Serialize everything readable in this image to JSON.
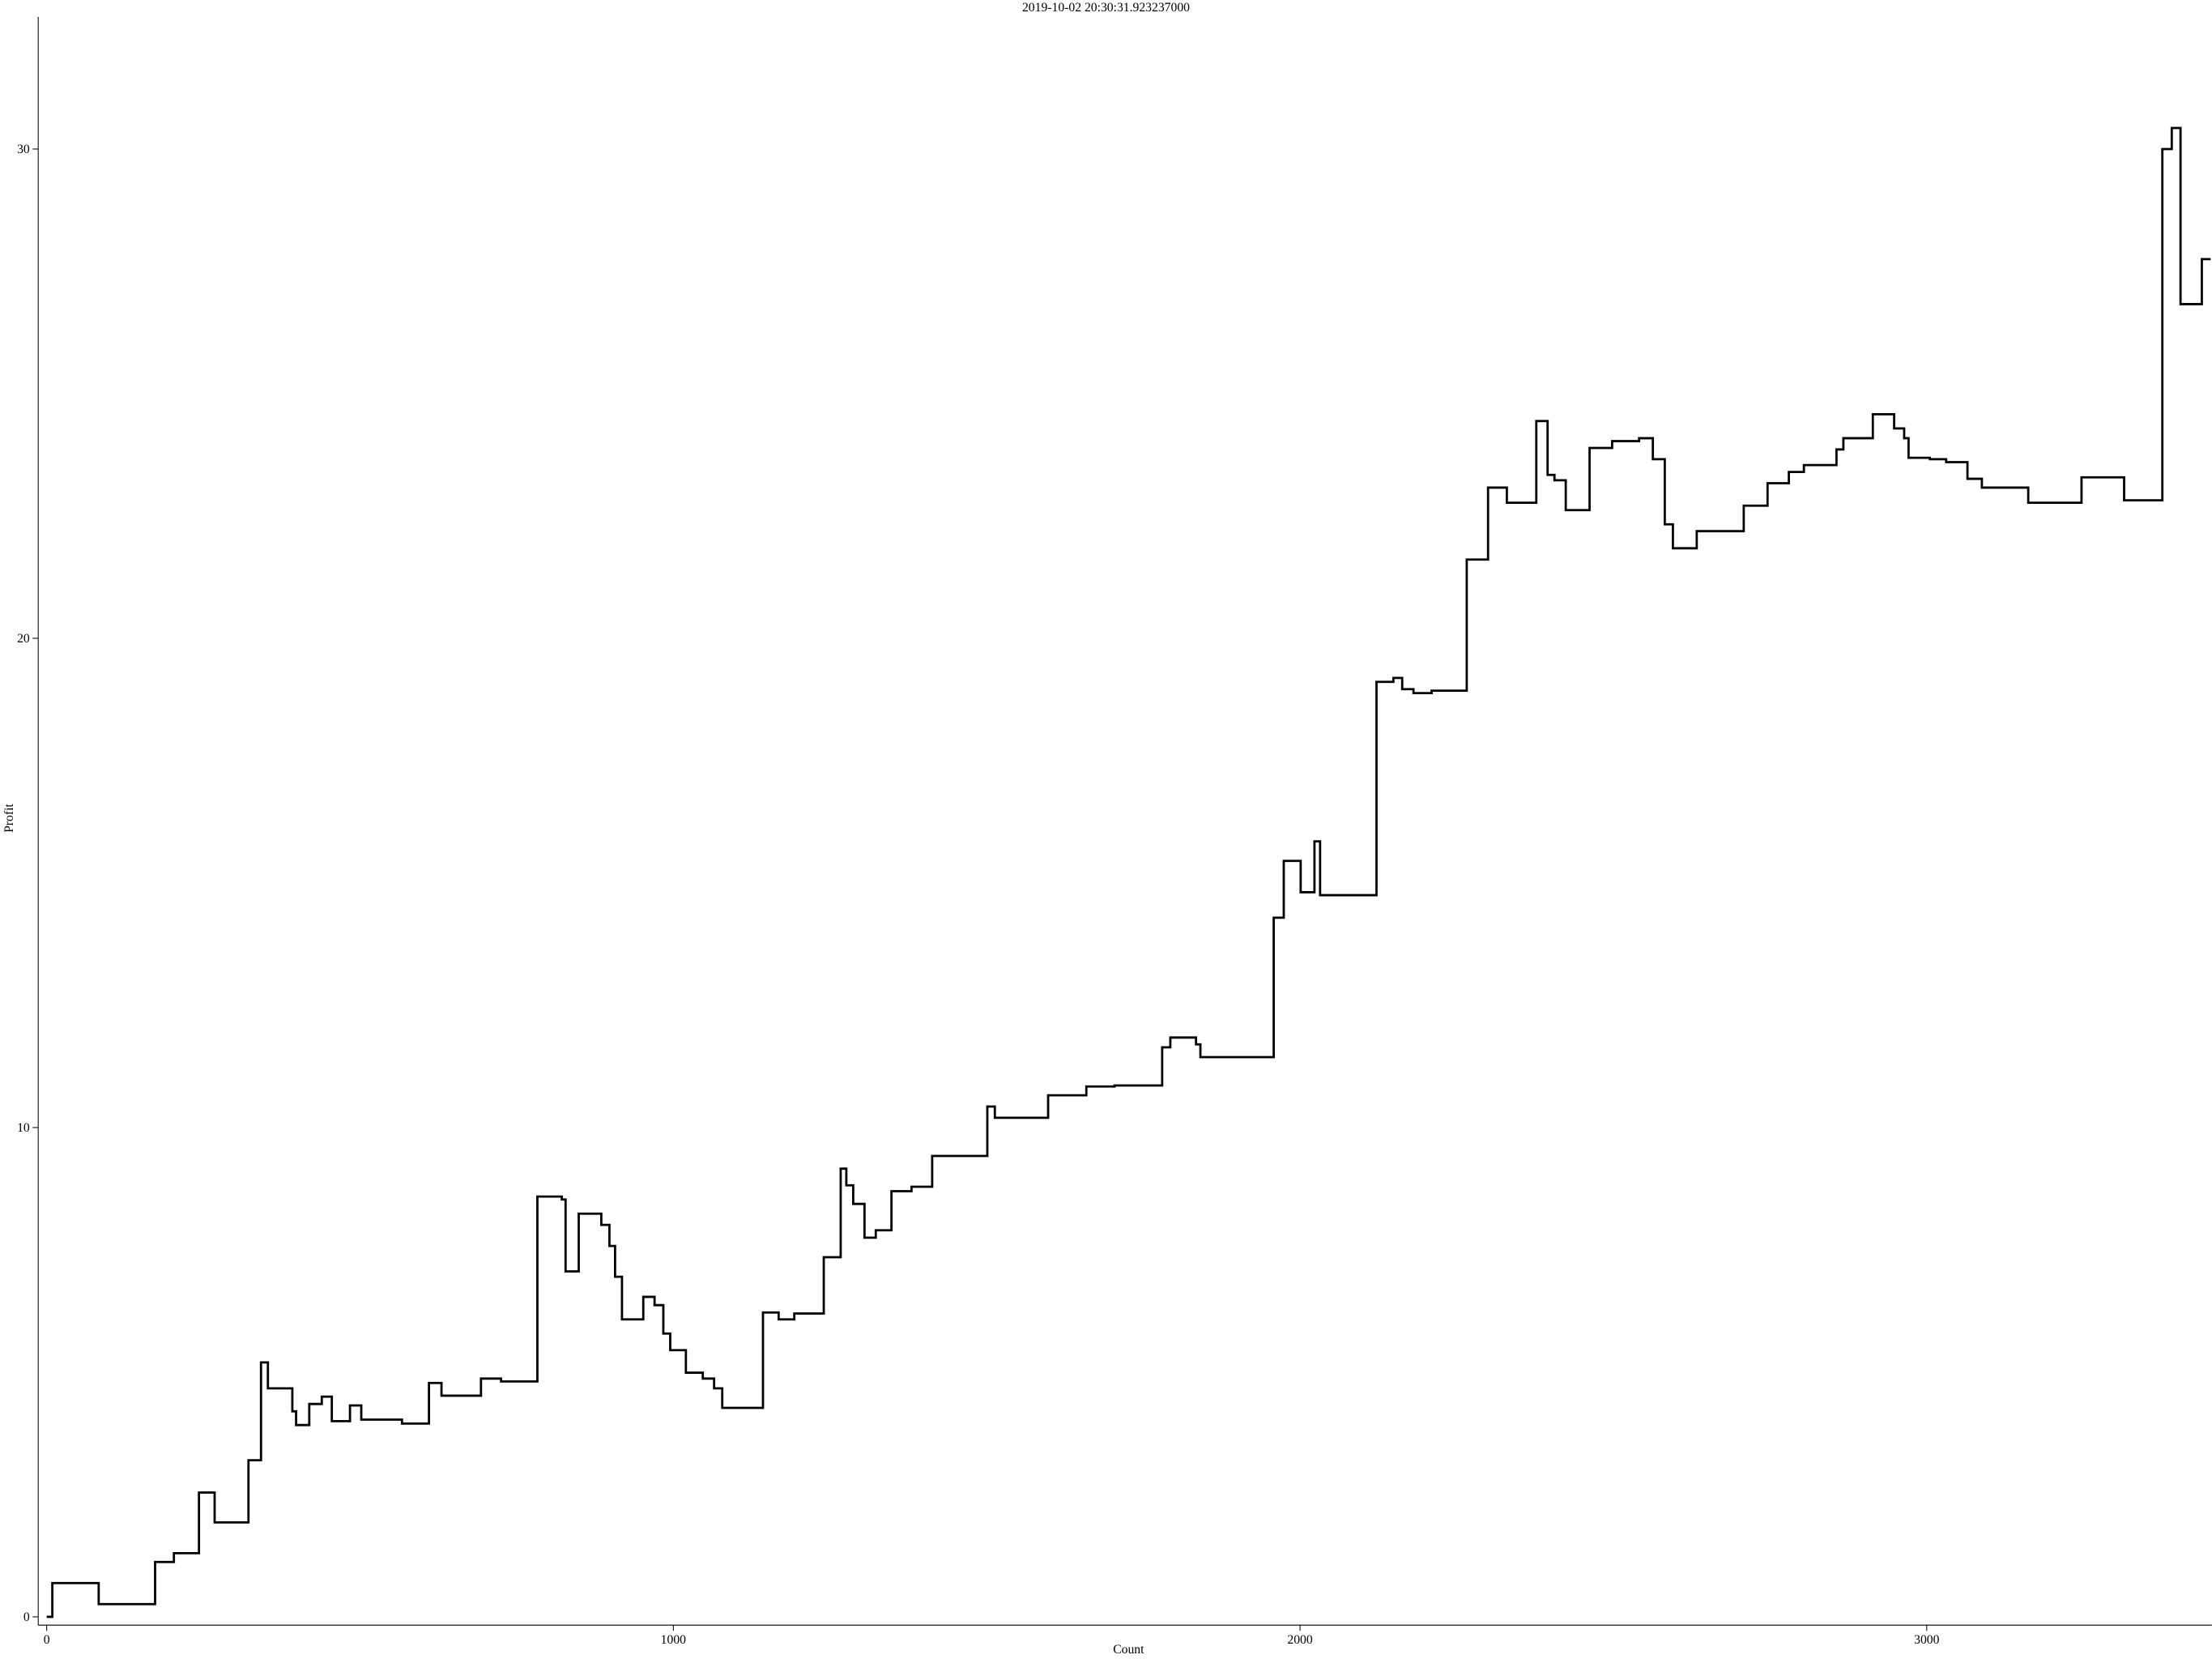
{
  "chart_data": {
    "type": "line",
    "drawstyle": "steps-post",
    "title": "2019-10-02 20:30:31.923237000",
    "xlabel": "Count",
    "ylabel": "Profit",
    "xlim": [
      -13.5,
      3455
    ],
    "ylim": [
      -0.17,
      32.7
    ],
    "xticks": [
      0,
      1000,
      2000,
      3000
    ],
    "yticks": [
      0,
      10,
      20,
      30
    ],
    "grid": false,
    "series": [
      {
        "name": "Profit",
        "color": "#000000",
        "x": [
          0,
          9,
          83,
          173,
          203,
          243,
          268,
          322,
          342,
          353,
          392,
          398,
          419,
          439,
          455,
          484,
          502,
          567,
          610,
          630,
          693,
          725,
          783,
          822,
          828,
          849,
          885,
          898,
          907,
          918,
          952,
          970,
          984,
          995,
          1020,
          1047,
          1065,
          1078,
          1143,
          1168,
          1193,
          1240,
          1267,
          1276,
          1287,
          1305,
          1323,
          1348,
          1380,
          1413,
          1501,
          1513,
          1598,
          1659,
          1704,
          1780,
          1793,
          1834,
          1841,
          1958,
          1974,
          2001,
          2023,
          2032,
          2122,
          2149,
          2163,
          2181,
          2210,
          2266,
          2300,
          2330,
          2377,
          2395,
          2406,
          2424,
          2462,
          2498,
          2541,
          2563,
          2582,
          2595,
          2633,
          2708,
          2746,
          2780,
          2804,
          2856,
          2867,
          2914,
          2948,
          2964,
          2971,
          3005,
          3031,
          3065,
          3088,
          3162,
          3247,
          3315,
          3376,
          3391,
          3405,
          3439,
          3453
        ],
        "values": [
          0,
          0.69,
          0.26,
          1.12,
          1.3,
          2.54,
          1.93,
          3.2,
          5.2,
          4.67,
          4.2,
          3.92,
          4.35,
          4.5,
          4.0,
          4.32,
          4.03,
          3.95,
          4.78,
          4.52,
          4.87,
          4.81,
          8.59,
          8.53,
          7.06,
          8.24,
          8.01,
          7.58,
          6.95,
          6.08,
          6.54,
          6.37,
          5.79,
          5.45,
          4.99,
          4.87,
          4.67,
          4.27,
          6.22,
          6.08,
          6.2,
          7.35,
          9.16,
          8.82,
          8.44,
          7.75,
          7.9,
          8.7,
          8.79,
          9.42,
          10.43,
          10.2,
          10.66,
          10.84,
          10.86,
          11.64,
          11.84,
          11.7,
          11.44,
          14.29,
          15.45,
          14.81,
          15.85,
          14.75,
          19.11,
          19.19,
          18.96,
          18.88,
          18.93,
          21.61,
          23.08,
          22.77,
          24.44,
          23.34,
          23.23,
          22.62,
          23.89,
          24.03,
          24.09,
          23.66,
          22.33,
          21.84,
          22.19,
          22.71,
          23.17,
          23.4,
          23.54,
          23.86,
          24.09,
          24.58,
          24.29,
          24.09,
          23.69,
          23.66,
          23.6,
          23.26,
          23.08,
          22.77,
          23.29,
          22.82,
          30.0,
          30.43,
          26.83,
          27.75,
          27.75
        ]
      }
    ]
  }
}
